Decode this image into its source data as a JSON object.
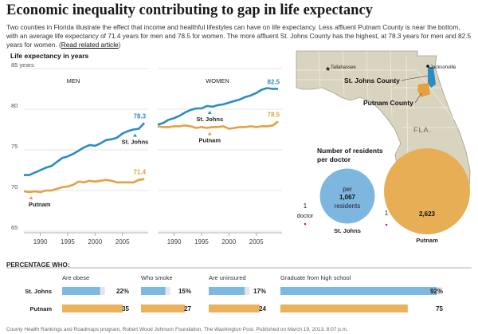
{
  "header": {
    "title": "Economic inequality contributing to gap in life expectancy",
    "intro": "Two counties in Florida illustrate the effect that income and healthful lifestyles can have on life expectancy. Less affluent Putnam County is near the bottom, with an average life expectancy of 71.4 years for men and 78.5 for women. The more affluent St. Johns County has the highest, at 78.3 years for men and 82.5 years for women.",
    "link": "Read related article"
  },
  "colors": {
    "st_johns": "#2b8cc4",
    "putnam": "#e5a040",
    "bar_blue": "#7cb9e2",
    "bar_orange": "#eab25a",
    "map_land": "#d9d4c0",
    "circle_blue": "#7db6df",
    "circle_orange": "#e8ae55"
  },
  "chart_data": [
    {
      "type": "line",
      "title": "Life expectancy in years",
      "subtitle": "MEN",
      "x_ticks": [
        1990,
        1995,
        2000,
        2005
      ],
      "y_ticks": [
        65,
        70,
        75,
        80,
        85
      ],
      "y_tick_labels": [
        "65",
        "70",
        "75",
        "80",
        "85 years"
      ],
      "xlim": [
        1987,
        2010
      ],
      "ylim": [
        65,
        85
      ],
      "series": [
        {
          "name": "St. Johns",
          "x": [
            1987,
            1988,
            1989,
            1990,
            1991,
            1992,
            1993,
            1994,
            1995,
            1996,
            1997,
            1998,
            1999,
            2000,
            2001,
            2002,
            2003,
            2004,
            2005,
            2006,
            2007,
            2008,
            2009
          ],
          "y": [
            71.9,
            71.9,
            72.2,
            72.5,
            72.8,
            73.0,
            73.5,
            74.0,
            74.2,
            74.5,
            74.9,
            75.3,
            75.6,
            75.5,
            75.8,
            76.2,
            76.3,
            76.5,
            77.0,
            77.3,
            77.5,
            77.6,
            78.3
          ],
          "end_label": "78.3"
        },
        {
          "name": "Putnam",
          "x": [
            1987,
            1988,
            1989,
            1990,
            1991,
            1992,
            1993,
            1994,
            1995,
            1996,
            1997,
            1998,
            1999,
            2000,
            2001,
            2002,
            2003,
            2004,
            2005,
            2006,
            2007,
            2008,
            2009
          ],
          "y": [
            69.9,
            69.8,
            69.9,
            69.8,
            70.0,
            70.0,
            70.2,
            70.4,
            70.5,
            70.7,
            71.1,
            71.0,
            71.2,
            71.1,
            71.2,
            71.3,
            71.2,
            71.0,
            71.0,
            71.0,
            71.0,
            71.3,
            71.4
          ],
          "end_label": "71.4"
        }
      ]
    },
    {
      "type": "line",
      "subtitle": "WOMEN",
      "x_ticks": [
        1990,
        1995,
        2000,
        2005
      ],
      "xlim": [
        1987,
        2010
      ],
      "ylim": [
        65,
        85
      ],
      "series": [
        {
          "name": "St. Johns",
          "x": [
            1987,
            1988,
            1989,
            1990,
            1991,
            1992,
            1993,
            1994,
            1995,
            1996,
            1997,
            1998,
            1999,
            2000,
            2001,
            2002,
            2003,
            2004,
            2005,
            2006,
            2007,
            2008,
            2009
          ],
          "y": [
            78.1,
            78.3,
            78.7,
            78.9,
            79.2,
            79.6,
            79.9,
            80.1,
            80.1,
            80.4,
            80.3,
            80.5,
            80.6,
            80.8,
            81.0,
            81.2,
            81.5,
            81.7,
            82.0,
            82.4,
            82.6,
            82.5,
            82.5
          ],
          "end_label": "82.5"
        },
        {
          "name": "Putnam",
          "x": [
            1987,
            1988,
            1989,
            1990,
            1991,
            1992,
            1993,
            1994,
            1995,
            1996,
            1997,
            1998,
            1999,
            2000,
            2001,
            2002,
            2003,
            2004,
            2005,
            2006,
            2007,
            2008,
            2009
          ],
          "y": [
            77.9,
            77.8,
            77.8,
            77.9,
            77.9,
            78.0,
            77.9,
            77.7,
            77.8,
            77.7,
            77.8,
            77.8,
            77.9,
            77.6,
            77.7,
            77.8,
            77.8,
            77.9,
            77.8,
            77.9,
            77.9,
            78.0,
            78.5
          ],
          "end_label": "78.5"
        }
      ]
    },
    {
      "type": "bar",
      "title": "PERCENTAGE WHO:",
      "categories": [
        "Are obese",
        "Who smoke",
        "Are uninsured",
        "Graduate from high school"
      ],
      "series": [
        {
          "name": "St. Johns",
          "values": [
            22,
            15,
            17,
            92
          ],
          "labels": [
            "22%",
            "15%",
            "17%",
            "92%"
          ]
        },
        {
          "name": "Putnam",
          "values": [
            35,
            27,
            24,
            75
          ],
          "labels": [
            "35",
            "27",
            "24",
            "75"
          ]
        }
      ]
    }
  ],
  "doctors": {
    "title_line1": "Number of residents",
    "title_line2": "per doctor",
    "st_johns": {
      "name": "St. Johns",
      "value": 1067,
      "value_label": "1,067",
      "per": "per",
      "residents": "residents"
    },
    "putnam": {
      "name": "Putnam",
      "value": 2623,
      "value_label": "2,623"
    },
    "one": "1",
    "doctor": "doctor"
  },
  "map": {
    "tallahassee": "Tallahassee",
    "jacksonville": "Jacksonville",
    "st_johns_county": "St. Johns County",
    "putnam_county": "Putnam County",
    "state": "FLA."
  },
  "footer": "County Health Rankings and Roadmaps program, Robert Wood Johnson Foundation, The Washington Post. Published on March 19, 2013, 8:07 p.m."
}
